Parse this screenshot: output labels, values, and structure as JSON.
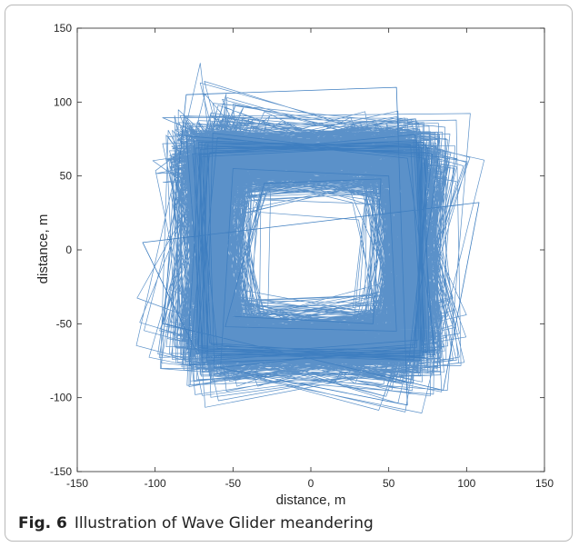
{
  "figure": {
    "label": "Fig. 6",
    "caption": "Illustration of Wave Glider meandering"
  },
  "colors": {
    "track": "#3e7ec0",
    "axis": "#262626",
    "background": "#ffffff"
  },
  "chart_data": {
    "type": "line",
    "title": "",
    "xlabel": "distance, m",
    "ylabel": "distance, m",
    "xlim": [
      -150,
      150
    ],
    "ylim": [
      -150,
      150
    ],
    "xticks": [
      -150,
      -100,
      -50,
      0,
      50,
      100,
      150
    ],
    "yticks": [
      -150,
      -100,
      -50,
      0,
      50,
      100,
      150
    ],
    "grid": false,
    "legend": "none",
    "series": [
      {
        "description_of_path": "dense square-loop track around origin",
        "x": [
          -67,
          70,
          72,
          -70,
          -66,
          69,
          73,
          -68,
          -71,
          68,
          71,
          -66,
          -69,
          72,
          68,
          -72,
          -75,
          76,
          66,
          -64,
          -70,
          74,
          70,
          -73,
          -60,
          62,
          80,
          -78,
          -65,
          66,
          74,
          -70,
          -74,
          71,
          69,
          -66,
          -72,
          78,
          63,
          -60,
          -73,
          67,
          75,
          -72,
          -68,
          70,
          70,
          -69,
          -80,
          82,
          65,
          -62,
          -66,
          64,
          72,
          -74,
          -70,
          75,
          67,
          -67,
          -63,
          73,
          76,
          -79,
          -71,
          68,
          73,
          -65,
          -76,
          69,
          79,
          -70,
          -67,
          73,
          66,
          -68,
          -72,
          71,
          72,
          -73,
          -108,
          108,
          85,
          -95,
          -80,
          55,
          62,
          -58,
          -50,
          50,
          55,
          -55,
          -30,
          45,
          40,
          -50
        ],
        "y": [
          70,
          68,
          -70,
          -67,
          72,
          66,
          -73,
          -70,
          65,
          70,
          -68,
          -72,
          68,
          73,
          -66,
          -69,
          74,
          69,
          -75,
          -64,
          63,
          71,
          -72,
          -66,
          76,
          62,
          -68,
          -78,
          66,
          74,
          -70,
          -73,
          69,
          67,
          -61,
          -72,
          71,
          65,
          -74,
          -67,
          64,
          78,
          -69,
          -65,
          72,
          70,
          -75,
          -70,
          77,
          63,
          -66,
          -80,
          67,
          71,
          -72,
          -68,
          73,
          69,
          -64,
          -75,
          79,
          62,
          -70,
          -67,
          68,
          74,
          -73,
          -63,
          65,
          72,
          -71,
          -76,
          70,
          66,
          -74,
          -68,
          73,
          69,
          -72,
          -70,
          5,
          32,
          -95,
          -50,
          105,
          110,
          -105,
          -80,
          55,
          50,
          -55,
          -52,
          45,
          48,
          -50,
          -45
        ]
      }
    ]
  }
}
